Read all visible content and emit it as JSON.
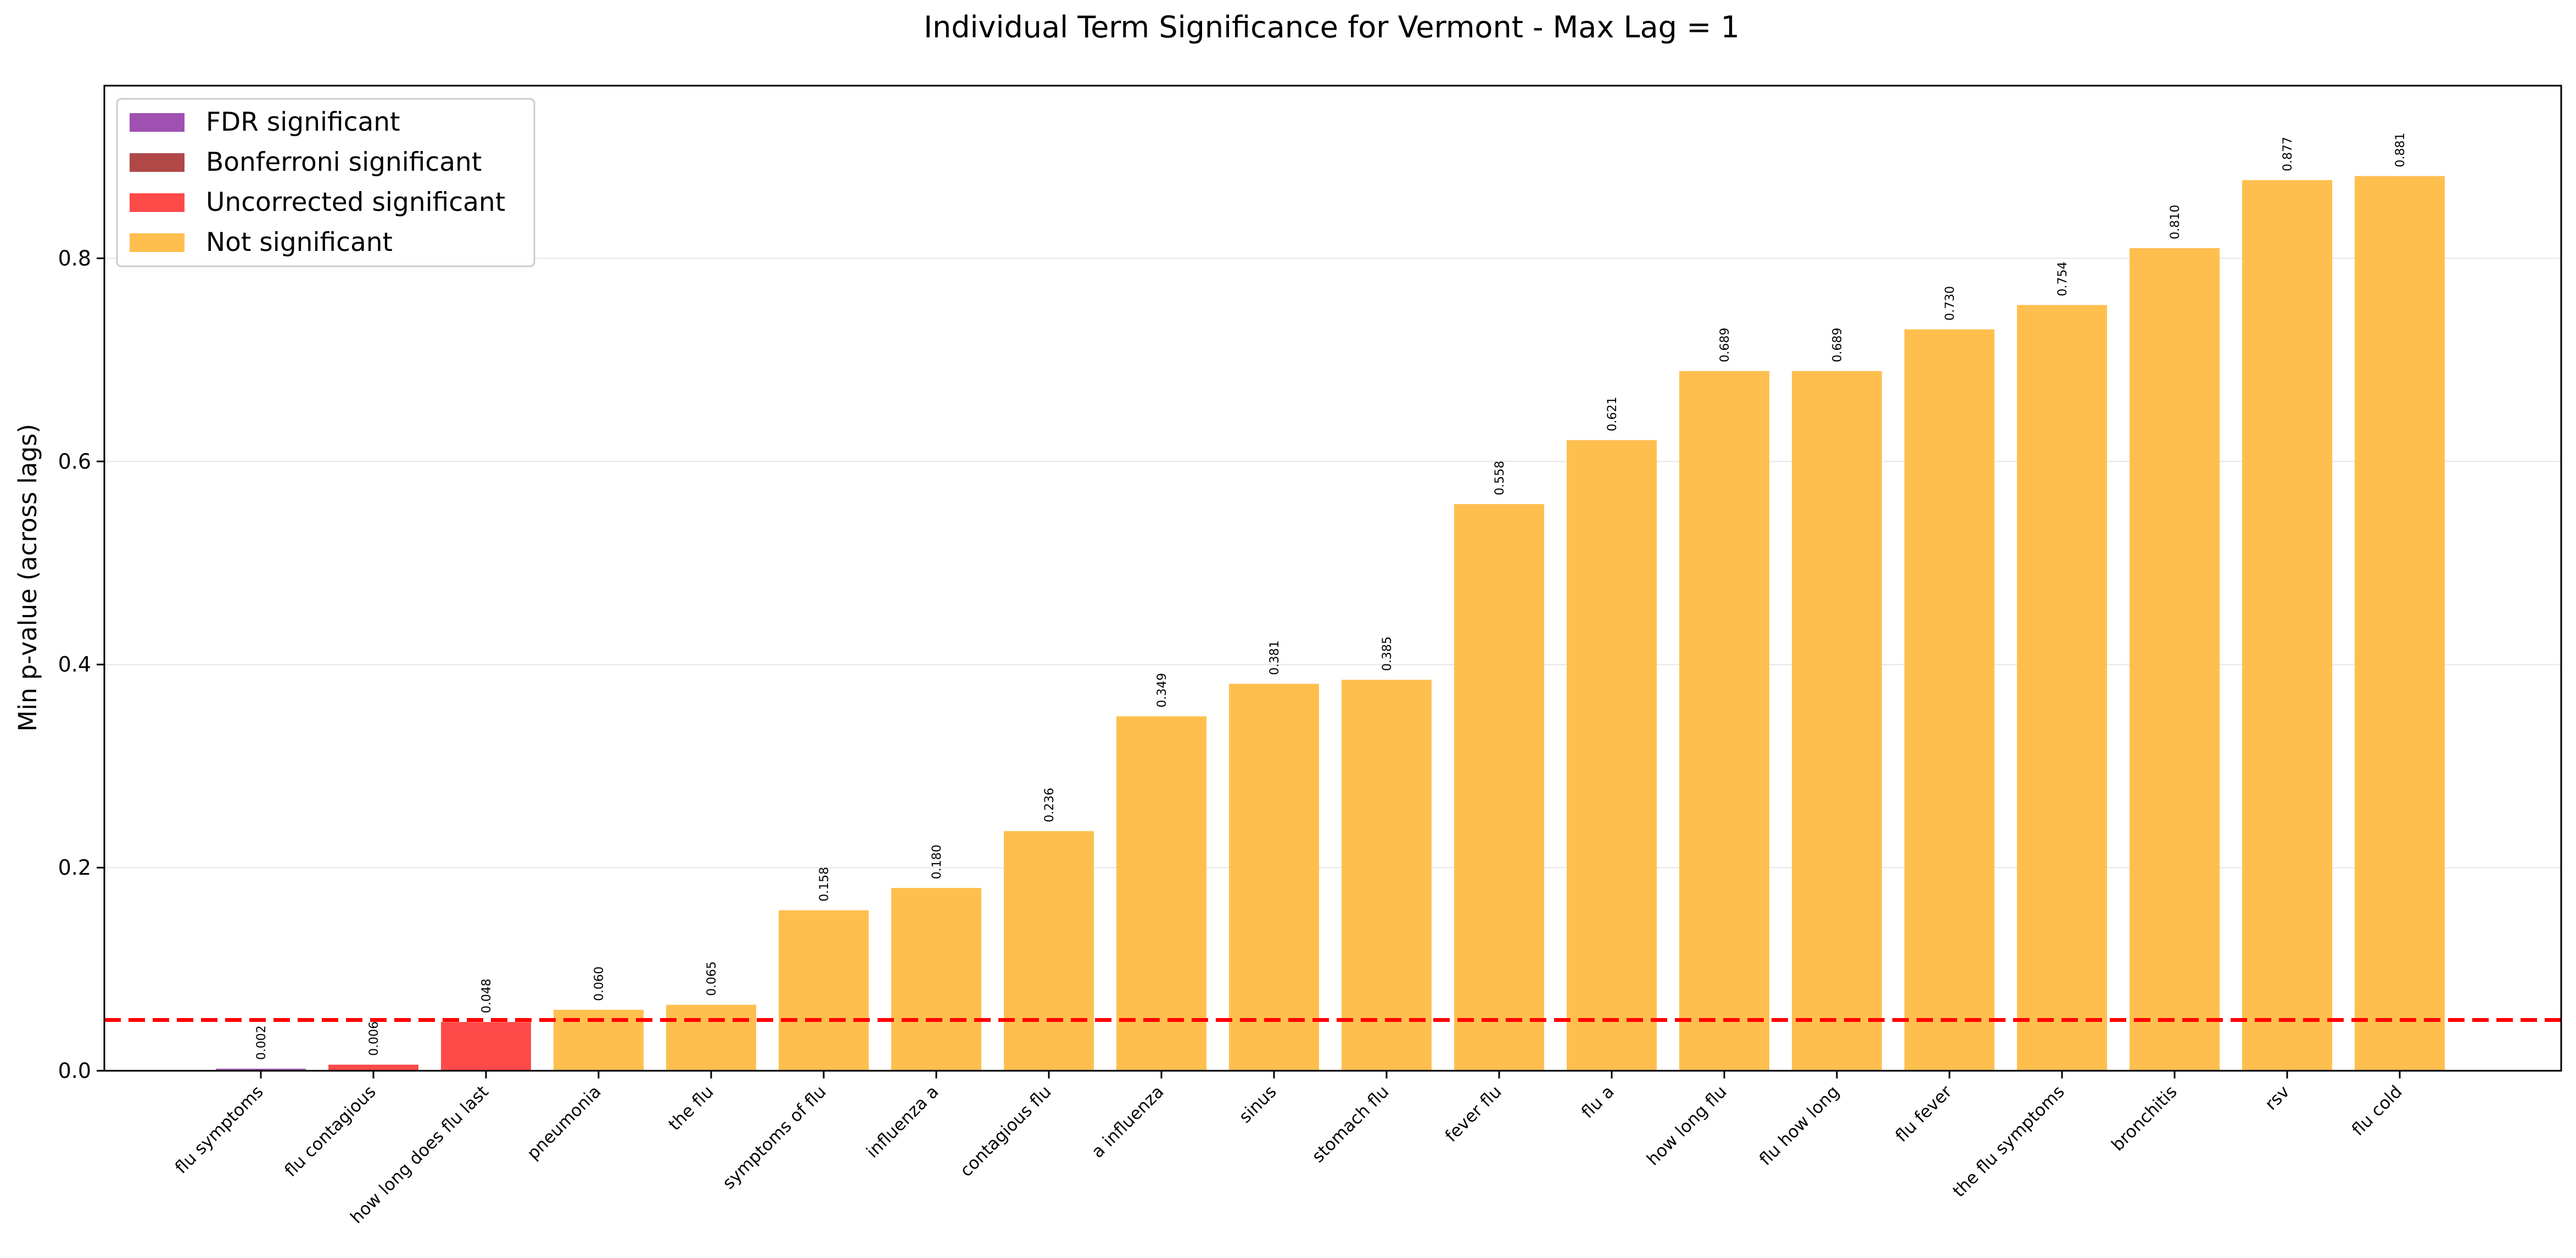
{
  "chart_data": {
    "type": "bar",
    "title": "Individual Term Significance for Vermont - Max Lag = 1",
    "xlabel": "",
    "ylabel": "Min p-value (across lags)",
    "ylim": [
      0,
      0.97
    ],
    "yticks": [
      "0.0",
      "0.2",
      "0.4",
      "0.6",
      "0.8"
    ],
    "threshold": 0.05,
    "grid": "horizontal",
    "legend_position": "top-left",
    "legend": [
      {
        "label": "FDR significant",
        "color": "#a050b0"
      },
      {
        "label": "Bonferroni significant",
        "color": "#b04848"
      },
      {
        "label": "Uncorrected significant",
        "color": "#ff4a4a"
      },
      {
        "label": "Not significant",
        "color": "#ffbf4f"
      }
    ],
    "categories": [
      "flu symptoms",
      "flu contagious",
      "how long does flu last",
      "pneumonia",
      "the flu",
      "symptoms of flu",
      "influenza a",
      "contagious flu",
      "a influenza",
      "sinus",
      "stomach flu",
      "fever flu",
      "flu a",
      "how long flu",
      "flu how long",
      "flu fever",
      "the flu symptoms",
      "bronchitis",
      "rsv",
      "flu cold"
    ],
    "values": [
      0.002,
      0.006,
      0.048,
      0.06,
      0.065,
      0.158,
      0.18,
      0.236,
      0.349,
      0.381,
      0.385,
      0.558,
      0.621,
      0.689,
      0.689,
      0.73,
      0.754,
      0.81,
      0.877,
      0.881
    ],
    "value_labels": [
      "0.002",
      "0.006",
      "0.048",
      "0.060",
      "0.065",
      "0.158",
      "0.180",
      "0.236",
      "0.349",
      "0.381",
      "0.385",
      "0.558",
      "0.621",
      "0.689",
      "0.689",
      "0.730",
      "0.754",
      "0.810",
      "0.877",
      "0.881"
    ],
    "significance": [
      "FDR significant",
      "Uncorrected significant",
      "Uncorrected significant",
      "Not significant",
      "Not significant",
      "Not significant",
      "Not significant",
      "Not significant",
      "Not significant",
      "Not significant",
      "Not significant",
      "Not significant",
      "Not significant",
      "Not significant",
      "Not significant",
      "Not significant",
      "Not significant",
      "Not significant",
      "Not significant",
      "Not significant"
    ]
  }
}
